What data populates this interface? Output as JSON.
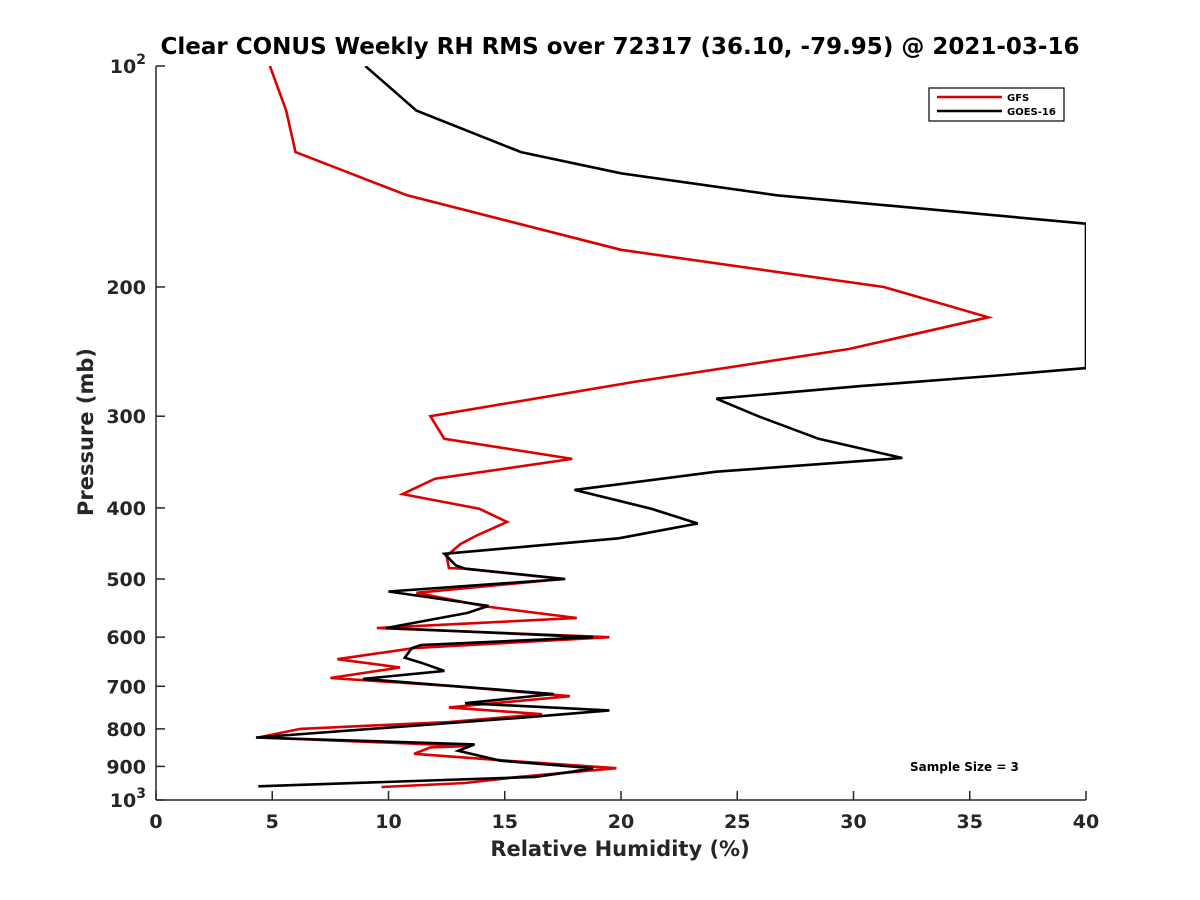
{
  "chart_data": {
    "type": "line",
    "title": "Clear CONUS Weekly RH RMS over 72317 (36.10, -79.95) @ 2021-03-16",
    "xlabel": "Relative Humidity (%)",
    "ylabel": "Pressure (mb)",
    "xlim": [
      0,
      40
    ],
    "ylim": [
      100,
      1000
    ],
    "y_scale": "log",
    "y_reversed": true,
    "x_ticks": [
      0,
      5,
      10,
      15,
      20,
      25,
      30,
      35,
      40
    ],
    "y_ticks": [
      {
        "value": 100,
        "base": "10",
        "exp": "2"
      },
      {
        "value": 200,
        "label": "200"
      },
      {
        "value": 300,
        "label": "300"
      },
      {
        "value": 400,
        "label": "400"
      },
      {
        "value": 500,
        "label": "500"
      },
      {
        "value": 600,
        "label": "600"
      },
      {
        "value": 700,
        "label": "700"
      },
      {
        "value": 800,
        "label": "800"
      },
      {
        "value": 900,
        "label": "900"
      },
      {
        "value": 1000,
        "base": "10",
        "exp": "3"
      }
    ],
    "legend_position": "top-right",
    "annotation": "Sample Size = 3",
    "series": [
      {
        "name": "GFS",
        "color": "#dd0000",
        "points": [
          {
            "rh": 4.9,
            "p": 100
          },
          {
            "rh": 5.6,
            "p": 115
          },
          {
            "rh": 6.0,
            "p": 131
          },
          {
            "rh": 10.8,
            "p": 150
          },
          {
            "rh": 20.0,
            "p": 178
          },
          {
            "rh": 31.3,
            "p": 200
          },
          {
            "rh": 35.8,
            "p": 220
          },
          {
            "rh": 29.8,
            "p": 243
          },
          {
            "rh": 20.7,
            "p": 269
          },
          {
            "rh": 11.8,
            "p": 300
          },
          {
            "rh": 12.4,
            "p": 322
          },
          {
            "rh": 17.9,
            "p": 343
          },
          {
            "rh": 12.0,
            "p": 365
          },
          {
            "rh": 10.6,
            "p": 383
          },
          {
            "rh": 13.9,
            "p": 401
          },
          {
            "rh": 15.1,
            "p": 418
          },
          {
            "rh": 13.8,
            "p": 436
          },
          {
            "rh": 13.1,
            "p": 448
          },
          {
            "rh": 12.5,
            "p": 465
          },
          {
            "rh": 12.6,
            "p": 483
          },
          {
            "rh": 13.3,
            "p": 484
          },
          {
            "rh": 17.5,
            "p": 500
          },
          {
            "rh": 11.2,
            "p": 522
          },
          {
            "rh": 14.2,
            "p": 545
          },
          {
            "rh": 18.1,
            "p": 565
          },
          {
            "rh": 9.5,
            "p": 583
          },
          {
            "rh": 19.5,
            "p": 600
          },
          {
            "rh": 11.1,
            "p": 621
          },
          {
            "rh": 7.8,
            "p": 643
          },
          {
            "rh": 10.5,
            "p": 660
          },
          {
            "rh": 7.5,
            "p": 682
          },
          {
            "rh": 12.9,
            "p": 700
          },
          {
            "rh": 17.8,
            "p": 722
          },
          {
            "rh": 12.6,
            "p": 748
          },
          {
            "rh": 16.6,
            "p": 764
          },
          {
            "rh": 12.6,
            "p": 783
          },
          {
            "rh": 6.2,
            "p": 800
          },
          {
            "rh": 4.4,
            "p": 822
          },
          {
            "rh": 13.5,
            "p": 844
          },
          {
            "rh": 11.8,
            "p": 848
          },
          {
            "rh": 11.1,
            "p": 865
          },
          {
            "rh": 15.1,
            "p": 884
          },
          {
            "rh": 19.8,
            "p": 905
          },
          {
            "rh": 15.6,
            "p": 930
          },
          {
            "rh": 13.3,
            "p": 948
          },
          {
            "rh": 9.7,
            "p": 960
          }
        ]
      },
      {
        "name": "GOES-16",
        "color": "#000000",
        "points": [
          {
            "rh": 9.0,
            "p": 100
          },
          {
            "rh": 11.2,
            "p": 115
          },
          {
            "rh": 15.7,
            "p": 131
          },
          {
            "rh": 20.0,
            "p": 140
          },
          {
            "rh": 26.7,
            "p": 150
          },
          {
            "rh": 40.0,
            "p": 164
          },
          {
            "rh": 40.0,
            "p": 258
          },
          {
            "rh": 36.2,
            "p": 264
          },
          {
            "rh": 30.3,
            "p": 273
          },
          {
            "rh": 24.1,
            "p": 284
          },
          {
            "rh": 25.9,
            "p": 300
          },
          {
            "rh": 28.5,
            "p": 322
          },
          {
            "rh": 32.1,
            "p": 342
          },
          {
            "rh": 24.1,
            "p": 357
          },
          {
            "rh": 18.0,
            "p": 378
          },
          {
            "rh": 21.3,
            "p": 401
          },
          {
            "rh": 23.3,
            "p": 420
          },
          {
            "rh": 19.9,
            "p": 440
          },
          {
            "rh": 12.4,
            "p": 462
          },
          {
            "rh": 12.9,
            "p": 479
          },
          {
            "rh": 13.3,
            "p": 484
          },
          {
            "rh": 17.6,
            "p": 500
          },
          {
            "rh": 10.0,
            "p": 520
          },
          {
            "rh": 14.3,
            "p": 544
          },
          {
            "rh": 13.4,
            "p": 556
          },
          {
            "rh": 9.9,
            "p": 583
          },
          {
            "rh": 18.8,
            "p": 600
          },
          {
            "rh": 11.4,
            "p": 615
          },
          {
            "rh": 11.0,
            "p": 621
          },
          {
            "rh": 10.7,
            "p": 640
          },
          {
            "rh": 11.4,
            "p": 650
          },
          {
            "rh": 12.4,
            "p": 667
          },
          {
            "rh": 8.9,
            "p": 684
          },
          {
            "rh": 12.9,
            "p": 700
          },
          {
            "rh": 17.1,
            "p": 717
          },
          {
            "rh": 13.3,
            "p": 738
          },
          {
            "rh": 19.5,
            "p": 755
          },
          {
            "rh": 15.6,
            "p": 773
          },
          {
            "rh": 4.3,
            "p": 822
          },
          {
            "rh": 13.7,
            "p": 840
          },
          {
            "rh": 13.0,
            "p": 857
          },
          {
            "rh": 14.8,
            "p": 884
          },
          {
            "rh": 18.8,
            "p": 905
          },
          {
            "rh": 17.9,
            "p": 915
          },
          {
            "rh": 16.3,
            "p": 930
          },
          {
            "rh": 4.4,
            "p": 958
          }
        ]
      }
    ]
  }
}
